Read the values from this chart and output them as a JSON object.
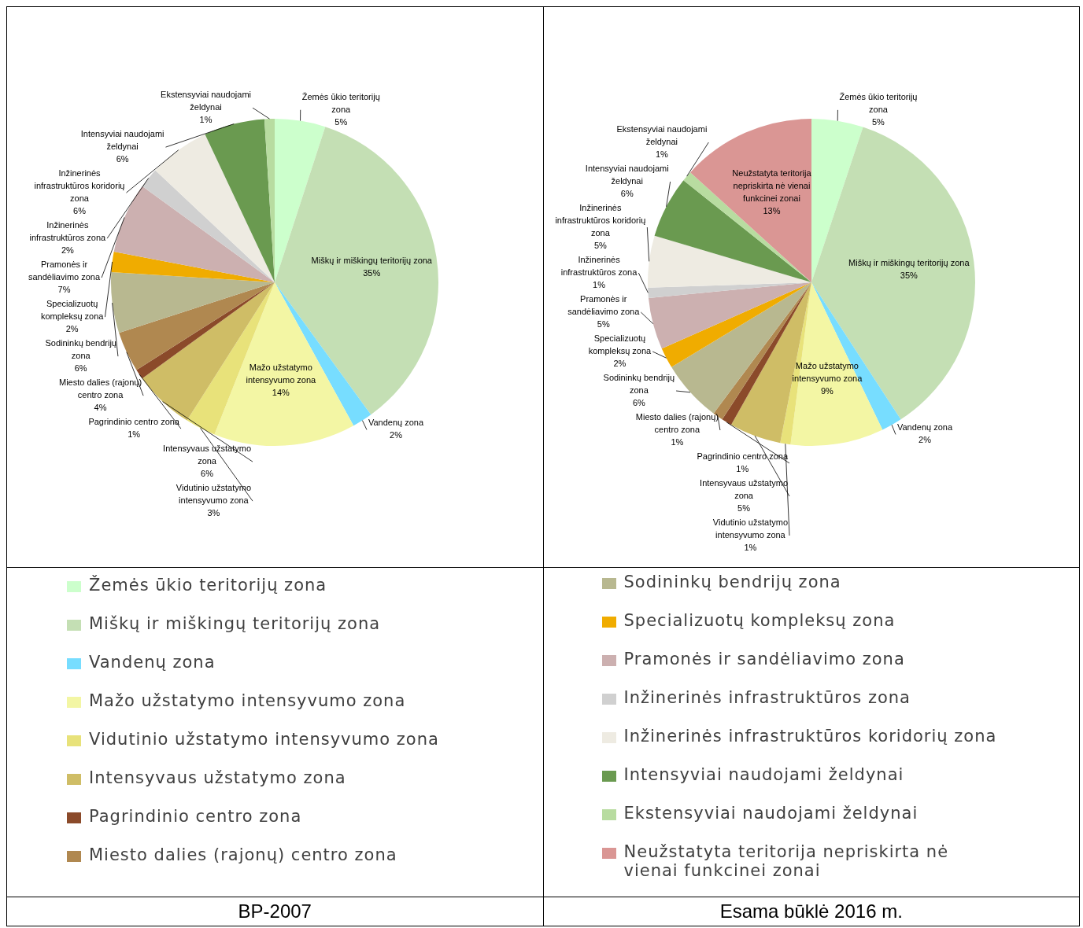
{
  "chart_data": [
    {
      "type": "pie",
      "title": "BP-2007",
      "legend": "bottom",
      "categories": [
        "Žemės ūkio teritorijų zona",
        "Miškų ir miškingų teritorijų zona",
        "Vandenų zona",
        "Mažo užstatymo intensyvumo zona",
        "Vidutinio užstatymo intensyvumo zona",
        "Intensyvaus užstatymo zona",
        "Pagrindinio centro zona",
        "Miesto dalies (rajonų) centro zona",
        "Sodininkų bendrijų zona",
        "Specializuotų kompleksų zona",
        "Pramonės ir sandėliavimo zona",
        "Inžinerinės infrastruktūros zona",
        "Inžinerinės infrastruktūros koridorių zona",
        "Intensyviai naudojami želdynai",
        "Ekstensyviai naudojami želdynai"
      ],
      "values": [
        5,
        35,
        2,
        14,
        3,
        6,
        1,
        4,
        6,
        2,
        7,
        2,
        6,
        6,
        1
      ],
      "value_labels": [
        "5%",
        "35%",
        "2%",
        "14%",
        "3%",
        "6%",
        "1%",
        "4%",
        "6%",
        "2%",
        "7%",
        "2%",
        "6%",
        "6%",
        "1%"
      ],
      "colors": [
        "#ccffcc",
        "#c4dfb4",
        "#77ddff",
        "#f3f6a4",
        "#e8e27a",
        "#cfbd66",
        "#8b4a2a",
        "#b08850",
        "#b8b890",
        "#f0ac00",
        "#ccb0b0",
        "#d0d0d0",
        "#eeebe2",
        "#6a9a50",
        "#b8dca0"
      ]
    },
    {
      "type": "pie",
      "title": "Esama būklė 2016 m.",
      "legend": "bottom",
      "categories": [
        "Žemės ūkio teritorijų zona",
        "Miškų ir miškingų teritorijų zona",
        "Vandenų zona",
        "Mažo užstatymo intensyvumo zona",
        "Vidutinio užstatymo intensyvumo zona",
        "Intensyvaus užstatymo zona",
        "Pagrindinio centro zona",
        "Miesto dalies (rajonų) centro zona",
        "Sodininkų bendrijų zona",
        "Specializuotų kompleksų zona",
        "Pramonės ir sandėliavimo zona",
        "Inžinerinės infrastruktūros zona",
        "Inžinerinės infrastruktūros koridorių zona",
        "Intensyviai naudojami želdynai",
        "Ekstensyviai naudojami želdynai",
        "Neužstatyta teritorija nepriskirta nė vienai funkcinei zonai"
      ],
      "values": [
        5,
        35,
        2,
        9,
        1,
        5,
        1,
        1,
        6,
        2,
        5,
        1,
        5,
        6,
        1,
        13
      ],
      "value_labels": [
        "5%",
        "35%",
        "2%",
        "9%",
        "1%",
        "5%",
        "1%",
        "1%",
        "6%",
        "2%",
        "5%",
        "1%",
        "5%",
        "6%",
        "1%",
        "13%"
      ],
      "colors": [
        "#ccffcc",
        "#c4dfb4",
        "#77ddff",
        "#f3f6a4",
        "#e8e27a",
        "#cfbd66",
        "#8b4a2a",
        "#b08850",
        "#b8b890",
        "#f0ac00",
        "#ccb0b0",
        "#d0d0d0",
        "#eeebe2",
        "#6a9a50",
        "#b8dca0",
        "#da9694"
      ]
    }
  ]
}
